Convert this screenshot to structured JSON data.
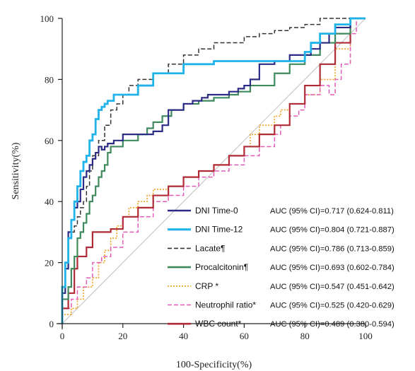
{
  "chart_data": {
    "type": "line",
    "xlabel": "100-Specificity(%)",
    "ylabel": "Sensitivity(%)",
    "xlim": [
      0,
      100
    ],
    "ylim": [
      0,
      100
    ],
    "xticks": [
      "0",
      "20",
      "40",
      "60",
      "80",
      "100"
    ],
    "yticks": [
      "0",
      "20",
      "40",
      "60",
      "80",
      "100"
    ],
    "grid": false,
    "legend_position": "bottom-right",
    "reference_line": {
      "from": [
        0,
        0
      ],
      "to": [
        100,
        100
      ],
      "color": "#c8c8c8"
    },
    "series": [
      {
        "name": "DNI Time-0",
        "auc": "AUC (95% CI)=0.717 (0.624-0.811)",
        "color": "#2b2b86",
        "style": "solid",
        "x": [
          0,
          1,
          2,
          2,
          3,
          4,
          5,
          6,
          7,
          8,
          9,
          10,
          11,
          12,
          13,
          14,
          15,
          17,
          20,
          25,
          30,
          33,
          35,
          37,
          40,
          43,
          46,
          48,
          50,
          55,
          58,
          60,
          62,
          65,
          70,
          75,
          80,
          82,
          85,
          88,
          90,
          95,
          100
        ],
        "y": [
          0,
          10,
          18,
          25,
          30,
          34,
          38,
          40,
          44,
          48,
          50,
          52,
          54,
          56,
          58,
          57,
          58,
          59,
          60,
          62,
          62,
          63,
          65,
          70,
          70,
          72,
          73,
          74,
          75,
          75,
          76,
          77,
          78,
          80,
          85,
          86,
          88,
          88,
          90,
          92,
          95,
          97,
          100
        ]
      },
      {
        "name": "DNI Time-12",
        "auc": "AUC (95% CI)=0.804 (0.721-0.887)",
        "color": "#1fb3ea",
        "style": "solid",
        "x": [
          0,
          1,
          2,
          3,
          4,
          5,
          6,
          7,
          8,
          9,
          10,
          11,
          12,
          13,
          14,
          15,
          17,
          20,
          25,
          30,
          40,
          50,
          60,
          70,
          80,
          82,
          85,
          90,
          95,
          100
        ],
        "y": [
          0,
          12,
          20,
          28,
          34,
          40,
          45,
          50,
          53,
          55,
          60,
          62,
          67,
          70,
          71,
          72,
          73,
          75,
          75,
          78,
          82,
          85,
          86,
          86,
          86,
          89,
          92,
          95,
          98,
          100
        ]
      },
      {
        "name": "Lacate¶",
        "auc": "AUC (95% CI)=0.786 (0.713-0.859)",
        "color": "#333333",
        "style": "dashed",
        "x": [
          0,
          1,
          2,
          3,
          4,
          5,
          6,
          7,
          8,
          9,
          10,
          12,
          14,
          16,
          18,
          20,
          22,
          25,
          28,
          30,
          35,
          40,
          45,
          50,
          55,
          60,
          65,
          70,
          75,
          80,
          85,
          90,
          95,
          100
        ],
        "y": [
          0,
          10,
          18,
          28,
          30,
          32,
          35,
          38,
          40,
          45,
          50,
          55,
          60,
          65,
          70,
          72,
          75,
          78,
          80,
          80,
          82,
          85,
          88,
          90,
          92,
          92,
          94,
          95,
          96,
          97,
          98,
          100,
          100,
          100
        ]
      },
      {
        "name": "Procalcitonin¶",
        "auc": "AUC (95% CI)=0.693 (0.602-0.784)",
        "color": "#3f8a5c",
        "style": "solid",
        "x": [
          0,
          2,
          3,
          4,
          5,
          6,
          7,
          8,
          9,
          10,
          11,
          12,
          13,
          14,
          15,
          16,
          18,
          20,
          22,
          25,
          28,
          30,
          33,
          36,
          40,
          45,
          50,
          55,
          58,
          62,
          66,
          70,
          75,
          80,
          85,
          90,
          95,
          100
        ],
        "y": [
          0,
          8,
          12,
          18,
          22,
          28,
          30,
          33,
          36,
          40,
          42,
          45,
          48,
          50,
          52,
          56,
          58,
          58,
          60,
          60,
          62,
          64,
          66,
          68,
          70,
          72,
          73,
          74,
          75,
          76,
          78,
          78,
          82,
          85,
          88,
          92,
          95,
          100
        ]
      },
      {
        "name": "CRP *",
        "auc": "AUC (95% CI)=0.547 (0.451-0.642)",
        "color": "#f0a020",
        "style": "dotted",
        "x": [
          0,
          3,
          5,
          7,
          10,
          12,
          14,
          16,
          18,
          20,
          22,
          25,
          28,
          30,
          35,
          40,
          45,
          50,
          55,
          60,
          62,
          65,
          70,
          72,
          75,
          80,
          85,
          90,
          95,
          100
        ],
        "y": [
          0,
          3,
          5,
          8,
          12,
          15,
          20,
          24,
          28,
          32,
          35,
          38,
          40,
          42,
          44,
          45,
          48,
          50,
          52,
          55,
          58,
          62,
          65,
          68,
          70,
          72,
          75,
          80,
          90,
          100
        ]
      },
      {
        "name": "Neutrophil ratio*",
        "auc": "AUC (95% CI)=0.525 (0.420-0.629)",
        "color": "#e35cb8",
        "style": "dashed",
        "x": [
          0,
          3,
          5,
          8,
          10,
          13,
          16,
          20,
          25,
          30,
          35,
          40,
          45,
          50,
          55,
          60,
          65,
          70,
          72,
          75,
          78,
          80,
          85,
          88,
          90,
          92,
          95,
          97,
          100
        ],
        "y": [
          0,
          5,
          8,
          12,
          15,
          20,
          22,
          25,
          30,
          35,
          40,
          42,
          45,
          48,
          50,
          52,
          55,
          58,
          62,
          65,
          68,
          70,
          75,
          78,
          75,
          80,
          85,
          95,
          100
        ]
      },
      {
        "name": "WBC count*",
        "auc": "AUC (95% CI)=0.489 (0.380-0.594)",
        "color": "#b02a35",
        "style": "solid",
        "x": [
          0,
          2,
          4,
          5,
          8,
          10,
          13,
          16,
          20,
          25,
          30,
          35,
          40,
          45,
          50,
          55,
          60,
          65,
          70,
          75,
          80,
          85,
          90,
          95,
          100
        ],
        "y": [
          0,
          5,
          10,
          18,
          22,
          25,
          30,
          30,
          31,
          35,
          38,
          42,
          45,
          48,
          50,
          52,
          55,
          58,
          62,
          65,
          72,
          78,
          85,
          92,
          100
        ]
      }
    ]
  }
}
